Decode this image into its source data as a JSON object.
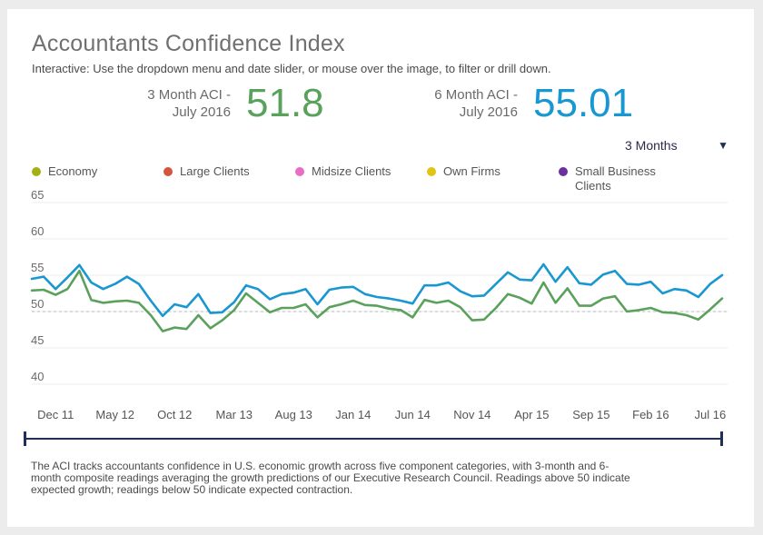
{
  "header": {
    "title": "Accountants Confidence Index",
    "subtitle": "Interactive: Use the dropdown menu and date slider, or mouse over the image, to filter or drill down."
  },
  "kpis": {
    "three_month_label_line1": "3 Month ACI -",
    "three_month_label_line2": "July 2016",
    "three_month_value": "51.8",
    "six_month_label_line1": "6 Month ACI -",
    "six_month_label_line2": "July 2016",
    "six_month_value": "55.01"
  },
  "controls": {
    "period_selected": "3 Months"
  },
  "legend": {
    "items": [
      {
        "label": "Economy",
        "color": "#a3b116"
      },
      {
        "label": "Large Clients",
        "color": "#d2563e"
      },
      {
        "label": "Midsize Clients",
        "color": "#e86ec5"
      },
      {
        "label": "Own Firms",
        "color": "#e0c516"
      },
      {
        "label": "Small Business Clients",
        "color": "#6c2fa0"
      }
    ]
  },
  "colors": {
    "three_month_green": "#5aa15b",
    "six_month_blue": "#1997d1",
    "slider_navy": "#1f2f5a"
  },
  "chart_data": {
    "type": "line",
    "title": "Accountants Confidence Index",
    "xlabel": "",
    "ylabel": "",
    "ylim": [
      40,
      65
    ],
    "yticks": [
      40,
      45,
      50,
      55,
      60,
      65
    ],
    "reference_line": 50,
    "x_tick_labels": [
      "Dec 11",
      "May 12",
      "Oct 12",
      "Mar 13",
      "Aug 13",
      "Jan 14",
      "Jun 14",
      "Nov 14",
      "Apr 15",
      "Sep 15",
      "Feb 16",
      "Jul 16"
    ],
    "x_tick_index": [
      2,
      7,
      12,
      17,
      22,
      27,
      32,
      37,
      42,
      47,
      52,
      57
    ],
    "series": [
      {
        "name": "6 Month ACI",
        "color": "#1997d1",
        "values": [
          54.5,
          54.8,
          53.1,
          54.7,
          56.4,
          54.0,
          53.1,
          53.8,
          54.8,
          53.8,
          51.5,
          49.4,
          51.0,
          50.6,
          52.4,
          49.8,
          49.9,
          51.3,
          53.6,
          53.1,
          51.7,
          52.4,
          52.6,
          53.1,
          51.0,
          53.0,
          53.3,
          53.4,
          52.4,
          52.0,
          51.8,
          51.5,
          51.1,
          53.6,
          53.6,
          54.0,
          52.8,
          52.1,
          52.2,
          53.8,
          55.4,
          54.4,
          54.3,
          56.5,
          54.1,
          56.1,
          53.9,
          53.7,
          55.1,
          55.6,
          53.8,
          53.7,
          54.1,
          52.5,
          53.1,
          52.9,
          52.0,
          53.8,
          55.01
        ]
      },
      {
        "name": "3 Month ACI",
        "color": "#5aa15b",
        "values": [
          52.9,
          53.0,
          52.3,
          53.1,
          55.6,
          51.6,
          51.2,
          51.4,
          51.5,
          51.2,
          49.5,
          47.3,
          47.8,
          47.6,
          49.5,
          47.7,
          48.8,
          50.2,
          52.5,
          51.2,
          49.9,
          50.5,
          50.5,
          51.0,
          49.2,
          50.6,
          51.0,
          51.5,
          50.9,
          50.8,
          50.4,
          50.2,
          49.2,
          51.6,
          51.2,
          51.5,
          50.6,
          48.8,
          48.9,
          50.5,
          52.4,
          51.9,
          51.1,
          54.0,
          51.2,
          53.2,
          50.8,
          50.8,
          51.8,
          52.1,
          50.0,
          50.2,
          50.5,
          49.9,
          49.8,
          49.5,
          48.9,
          50.3,
          51.8
        ]
      }
    ]
  },
  "footnote": "The ACI tracks accountants confidence in U.S. economic growth across five component categories, with 3-month and 6-month composite readings averaging the growth predictions of our Executive Research Council. Readings above 50 indicate expected growth; readings below 50 indicate expected contraction."
}
